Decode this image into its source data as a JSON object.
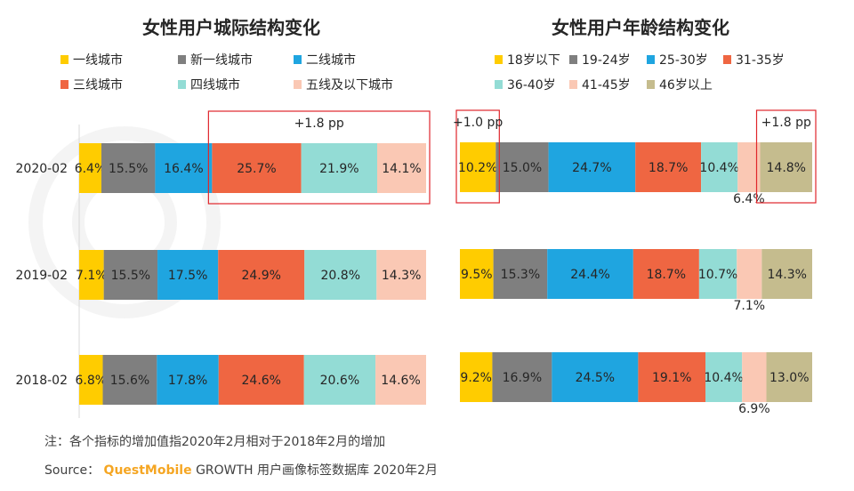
{
  "chart_data": [
    {
      "type": "bar",
      "stacked": "horizontal-100%",
      "title": "女性用户城际结构变化",
      "categories": [
        "2020-02",
        "2019-02",
        "2018-02"
      ],
      "series": [
        {
          "name": "一线城市",
          "color": "#ffcc00",
          "values": [
            6.4,
            7.1,
            6.8
          ],
          "labels": [
            "6.4%",
            "7.1%",
            "6.8%"
          ]
        },
        {
          "name": "新一线城市",
          "color": "#7f7f7f",
          "values": [
            15.5,
            15.5,
            15.6
          ],
          "labels": [
            "15.5%",
            "15.5%",
            "15.6%"
          ]
        },
        {
          "name": "二线城市",
          "color": "#1fa5e0",
          "values": [
            16.4,
            17.5,
            17.8
          ],
          "labels": [
            "16.4%",
            "17.5%",
            "17.8%"
          ]
        },
        {
          "name": "三线城市",
          "color": "#ef6642",
          "values": [
            25.7,
            24.9,
            24.6
          ],
          "labels": [
            "25.7%",
            "24.9%",
            "24.6%"
          ]
        },
        {
          "name": "四线城市",
          "color": "#93dcd5",
          "values": [
            21.9,
            20.8,
            20.6
          ],
          "labels": [
            "21.9%",
            "20.8%",
            "20.6%"
          ]
        },
        {
          "name": "五线及以下城市",
          "color": "#fac8b4",
          "values": [
            14.1,
            14.3,
            14.6
          ],
          "labels": [
            "14.1%",
            "14.3%",
            "14.6%"
          ]
        }
      ],
      "annotations": [
        {
          "text": "+1.8 pp",
          "row": 0,
          "series_from": 3,
          "series_to": 5
        }
      ]
    },
    {
      "type": "bar",
      "stacked": "horizontal-100%",
      "title": "女性用户年龄结构变化",
      "categories": [
        "2020-02",
        "2019-02",
        "2018-02"
      ],
      "series": [
        {
          "name": "18岁以下",
          "color": "#ffcc00",
          "values": [
            10.2,
            9.5,
            9.2
          ],
          "labels": [
            "10.2%",
            "9.5%",
            "9.2%"
          ]
        },
        {
          "name": "19-24岁",
          "color": "#7f7f7f",
          "values": [
            15.0,
            15.3,
            16.9
          ],
          "labels": [
            "15.0%",
            "15.3%",
            "16.9%"
          ]
        },
        {
          "name": "25-30岁",
          "color": "#1fa5e0",
          "values": [
            24.7,
            24.4,
            24.5
          ],
          "labels": [
            "24.7%",
            "24.4%",
            "24.5%"
          ]
        },
        {
          "name": "31-35岁",
          "color": "#ef6642",
          "values": [
            18.7,
            18.7,
            19.1
          ],
          "labels": [
            "18.7%",
            "18.7%",
            "19.1%"
          ]
        },
        {
          "name": "36-40岁",
          "color": "#93dcd5",
          "values": [
            10.4,
            10.7,
            10.4
          ],
          "labels": [
            "10.4%",
            "10.7%",
            "10.4%"
          ]
        },
        {
          "name": "41-45岁",
          "color": "#fac8b4",
          "values": [
            6.4,
            7.1,
            6.9
          ],
          "labels": [
            "6.4%",
            "7.1%",
            "6.9%"
          ]
        },
        {
          "name": "46岁以上",
          "color": "#c5bc8e",
          "values": [
            14.8,
            14.3,
            13.0
          ],
          "labels": [
            "14.8%",
            "14.3%",
            "13.0%"
          ]
        }
      ],
      "annotations": [
        {
          "text": "+1.0 pp",
          "row": 0,
          "series_from": 0,
          "series_to": 0
        },
        {
          "text": "+1.8 pp",
          "row": 0,
          "series_from": 6,
          "series_to": 6
        }
      ]
    }
  ],
  "footer": {
    "note": "注：各个指标的增加值指2020年2月相对于2018年2月的增加",
    "source_prefix": "Source：",
    "source_brand": "QuestMobile",
    "source_suffix": "GROWTH 用户画像标签数据库 2020年2月"
  }
}
